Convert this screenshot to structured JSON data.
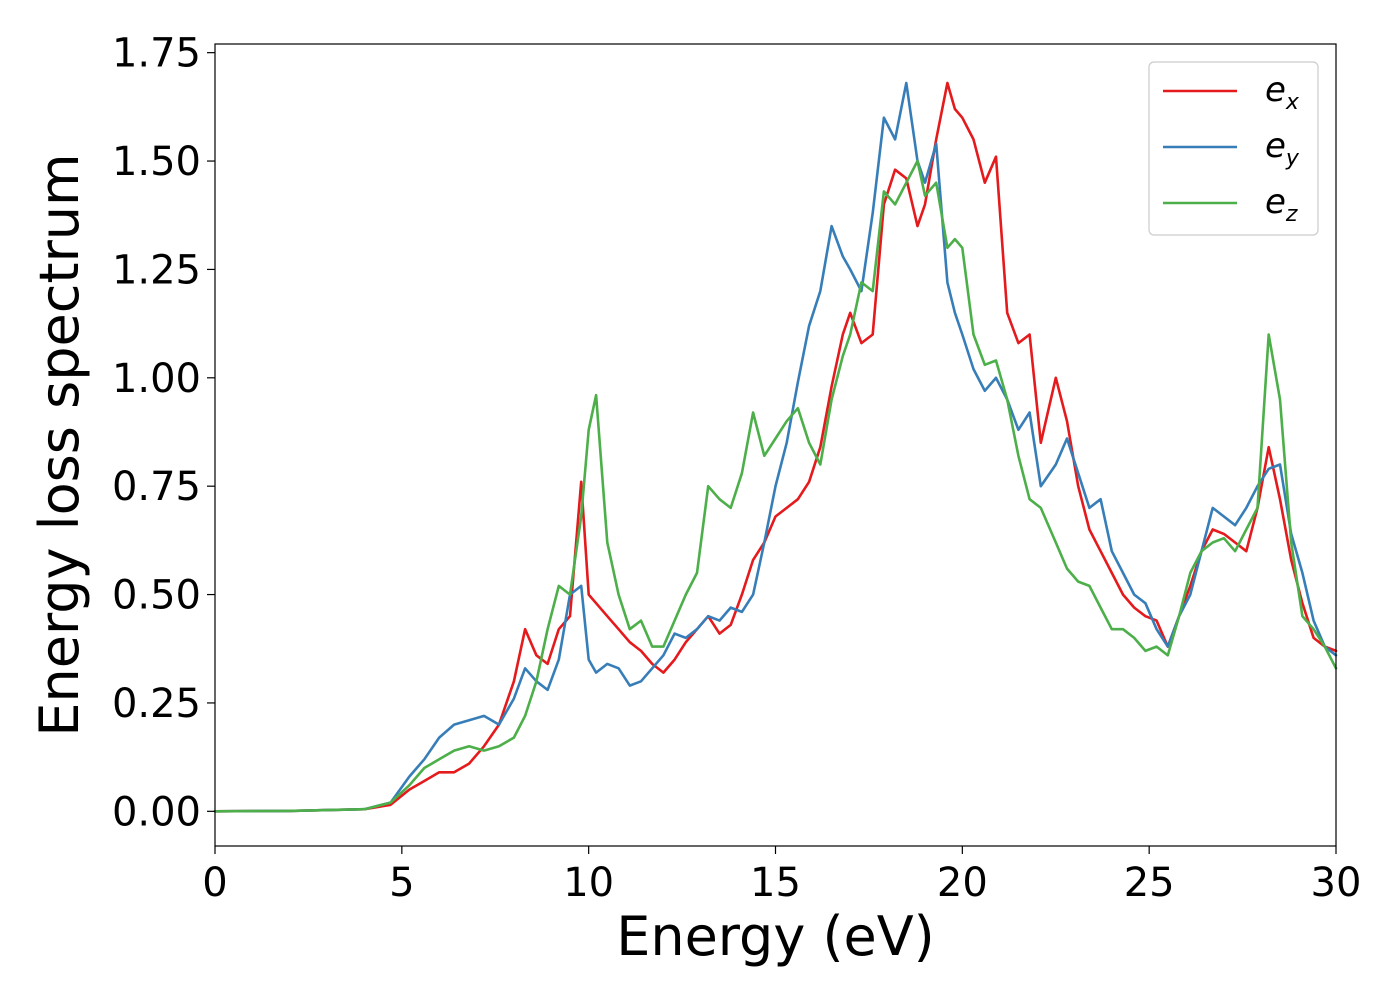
{
  "chart_data": {
    "type": "line",
    "xlabel": "Energy (eV)",
    "ylabel": "Energy loss spectrum",
    "xlim": [
      0,
      30
    ],
    "ylim": [
      -0.08,
      1.77
    ],
    "xticks": [
      0,
      5,
      10,
      15,
      20,
      25,
      30
    ],
    "xtick_labels": [
      "0",
      "5",
      "10",
      "15",
      "20",
      "25",
      "30"
    ],
    "yticks": [
      0.0,
      0.25,
      0.5,
      0.75,
      1.0,
      1.25,
      1.5,
      1.75
    ],
    "ytick_labels": [
      "0.00",
      "0.25",
      "0.50",
      "0.75",
      "1.00",
      "1.25",
      "1.50",
      "1.75"
    ],
    "grid": false,
    "legend_position": "top-right",
    "series": [
      {
        "name": "e_x",
        "label_main": "e",
        "label_sub": "x",
        "color": "#e41a1c",
        "x": [
          0,
          2,
          4,
          4.7,
          5.2,
          5.6,
          6,
          6.4,
          6.8,
          7.2,
          7.6,
          8,
          8.3,
          8.6,
          8.9,
          9.2,
          9.5,
          9.8,
          10,
          10.2,
          10.5,
          10.8,
          11.1,
          11.4,
          11.7,
          12,
          12.3,
          12.6,
          12.9,
          13.2,
          13.5,
          13.8,
          14.1,
          14.4,
          14.7,
          15,
          15.3,
          15.6,
          15.9,
          16.2,
          16.5,
          16.8,
          17,
          17.3,
          17.6,
          17.9,
          18.2,
          18.5,
          18.8,
          19,
          19.3,
          19.6,
          19.8,
          20,
          20.3,
          20.6,
          20.9,
          21.2,
          21.5,
          21.8,
          22.1,
          22.5,
          22.8,
          23.1,
          23.4,
          23.7,
          24,
          24.3,
          24.6,
          24.9,
          25.2,
          25.5,
          25.8,
          26.1,
          26.4,
          26.7,
          27,
          27.3,
          27.6,
          27.9,
          28.2,
          28.5,
          28.8,
          29.1,
          29.4,
          29.7,
          30
        ],
        "y": [
          0,
          0.001,
          0.005,
          0.015,
          0.05,
          0.07,
          0.09,
          0.09,
          0.11,
          0.15,
          0.2,
          0.3,
          0.42,
          0.36,
          0.34,
          0.42,
          0.45,
          0.76,
          0.5,
          0.48,
          0.45,
          0.42,
          0.39,
          0.37,
          0.34,
          0.32,
          0.35,
          0.39,
          0.42,
          0.45,
          0.41,
          0.43,
          0.5,
          0.58,
          0.62,
          0.68,
          0.7,
          0.72,
          0.76,
          0.84,
          0.98,
          1.1,
          1.15,
          1.08,
          1.1,
          1.4,
          1.48,
          1.46,
          1.35,
          1.4,
          1.55,
          1.68,
          1.62,
          1.6,
          1.55,
          1.45,
          1.51,
          1.15,
          1.08,
          1.1,
          0.85,
          1.0,
          0.9,
          0.75,
          0.65,
          0.6,
          0.55,
          0.5,
          0.47,
          0.45,
          0.44,
          0.38,
          0.45,
          0.52,
          0.6,
          0.65,
          0.64,
          0.62,
          0.6,
          0.7,
          0.84,
          0.72,
          0.58,
          0.48,
          0.4,
          0.38,
          0.37
        ]
      },
      {
        "name": "e_y",
        "label_main": "e",
        "label_sub": "y",
        "color": "#377eb8",
        "x": [
          0,
          2,
          4,
          4.7,
          5.2,
          5.6,
          6,
          6.4,
          6.8,
          7.2,
          7.6,
          8,
          8.3,
          8.6,
          8.9,
          9.2,
          9.5,
          9.8,
          10,
          10.2,
          10.5,
          10.8,
          11.1,
          11.4,
          11.7,
          12,
          12.3,
          12.6,
          12.9,
          13.2,
          13.5,
          13.8,
          14.1,
          14.4,
          14.7,
          15,
          15.3,
          15.6,
          15.9,
          16.2,
          16.5,
          16.8,
          17,
          17.3,
          17.6,
          17.9,
          18.2,
          18.5,
          18.8,
          19,
          19.3,
          19.6,
          19.8,
          20,
          20.3,
          20.6,
          20.9,
          21.2,
          21.5,
          21.8,
          22.1,
          22.5,
          22.8,
          23.1,
          23.4,
          23.7,
          24,
          24.3,
          24.6,
          24.9,
          25.2,
          25.5,
          25.8,
          26.1,
          26.4,
          26.7,
          27,
          27.3,
          27.6,
          27.9,
          28.2,
          28.5,
          28.8,
          29.1,
          29.4,
          29.7,
          30
        ],
        "y": [
          0,
          0.001,
          0.005,
          0.02,
          0.08,
          0.12,
          0.17,
          0.2,
          0.21,
          0.22,
          0.2,
          0.26,
          0.33,
          0.3,
          0.28,
          0.35,
          0.5,
          0.52,
          0.35,
          0.32,
          0.34,
          0.33,
          0.29,
          0.3,
          0.33,
          0.36,
          0.41,
          0.4,
          0.42,
          0.45,
          0.44,
          0.47,
          0.46,
          0.5,
          0.62,
          0.75,
          0.85,
          0.99,
          1.12,
          1.2,
          1.35,
          1.28,
          1.25,
          1.2,
          1.38,
          1.6,
          1.55,
          1.68,
          1.5,
          1.45,
          1.54,
          1.22,
          1.15,
          1.1,
          1.02,
          0.97,
          1.0,
          0.95,
          0.88,
          0.92,
          0.75,
          0.8,
          0.86,
          0.78,
          0.7,
          0.72,
          0.6,
          0.55,
          0.5,
          0.48,
          0.42,
          0.38,
          0.45,
          0.5,
          0.6,
          0.7,
          0.68,
          0.66,
          0.7,
          0.75,
          0.79,
          0.8,
          0.64,
          0.55,
          0.44,
          0.38,
          0.36
        ]
      },
      {
        "name": "e_z",
        "label_main": "e",
        "label_sub": "z",
        "color": "#4daf4a",
        "x": [
          0,
          2,
          4,
          4.7,
          5.2,
          5.6,
          6,
          6.4,
          6.8,
          7.2,
          7.6,
          8,
          8.3,
          8.6,
          8.9,
          9.2,
          9.5,
          9.8,
          10,
          10.2,
          10.5,
          10.8,
          11.1,
          11.4,
          11.7,
          12,
          12.3,
          12.6,
          12.9,
          13.2,
          13.5,
          13.8,
          14.1,
          14.4,
          14.7,
          15,
          15.3,
          15.6,
          15.9,
          16.2,
          16.5,
          16.8,
          17,
          17.3,
          17.6,
          17.9,
          18.2,
          18.5,
          18.8,
          19,
          19.3,
          19.6,
          19.8,
          20,
          20.3,
          20.6,
          20.9,
          21.2,
          21.5,
          21.8,
          22.1,
          22.5,
          22.8,
          23.1,
          23.4,
          23.7,
          24,
          24.3,
          24.6,
          24.9,
          25.2,
          25.5,
          25.8,
          26.1,
          26.4,
          26.7,
          27,
          27.3,
          27.6,
          27.9,
          28.2,
          28.5,
          28.8,
          29.1,
          29.4,
          29.7,
          30
        ],
        "y": [
          0,
          0.001,
          0.005,
          0.02,
          0.06,
          0.1,
          0.12,
          0.14,
          0.15,
          0.14,
          0.15,
          0.17,
          0.22,
          0.3,
          0.42,
          0.52,
          0.5,
          0.68,
          0.88,
          0.96,
          0.62,
          0.5,
          0.42,
          0.44,
          0.38,
          0.38,
          0.44,
          0.5,
          0.55,
          0.75,
          0.72,
          0.7,
          0.78,
          0.92,
          0.82,
          0.86,
          0.9,
          0.93,
          0.85,
          0.8,
          0.95,
          1.05,
          1.1,
          1.22,
          1.2,
          1.43,
          1.4,
          1.45,
          1.5,
          1.42,
          1.45,
          1.3,
          1.32,
          1.3,
          1.1,
          1.03,
          1.04,
          0.95,
          0.82,
          0.72,
          0.7,
          0.62,
          0.56,
          0.53,
          0.52,
          0.47,
          0.42,
          0.42,
          0.4,
          0.37,
          0.38,
          0.36,
          0.45,
          0.55,
          0.6,
          0.62,
          0.63,
          0.6,
          0.65,
          0.7,
          1.1,
          0.95,
          0.62,
          0.45,
          0.42,
          0.38,
          0.33
        ]
      }
    ]
  }
}
